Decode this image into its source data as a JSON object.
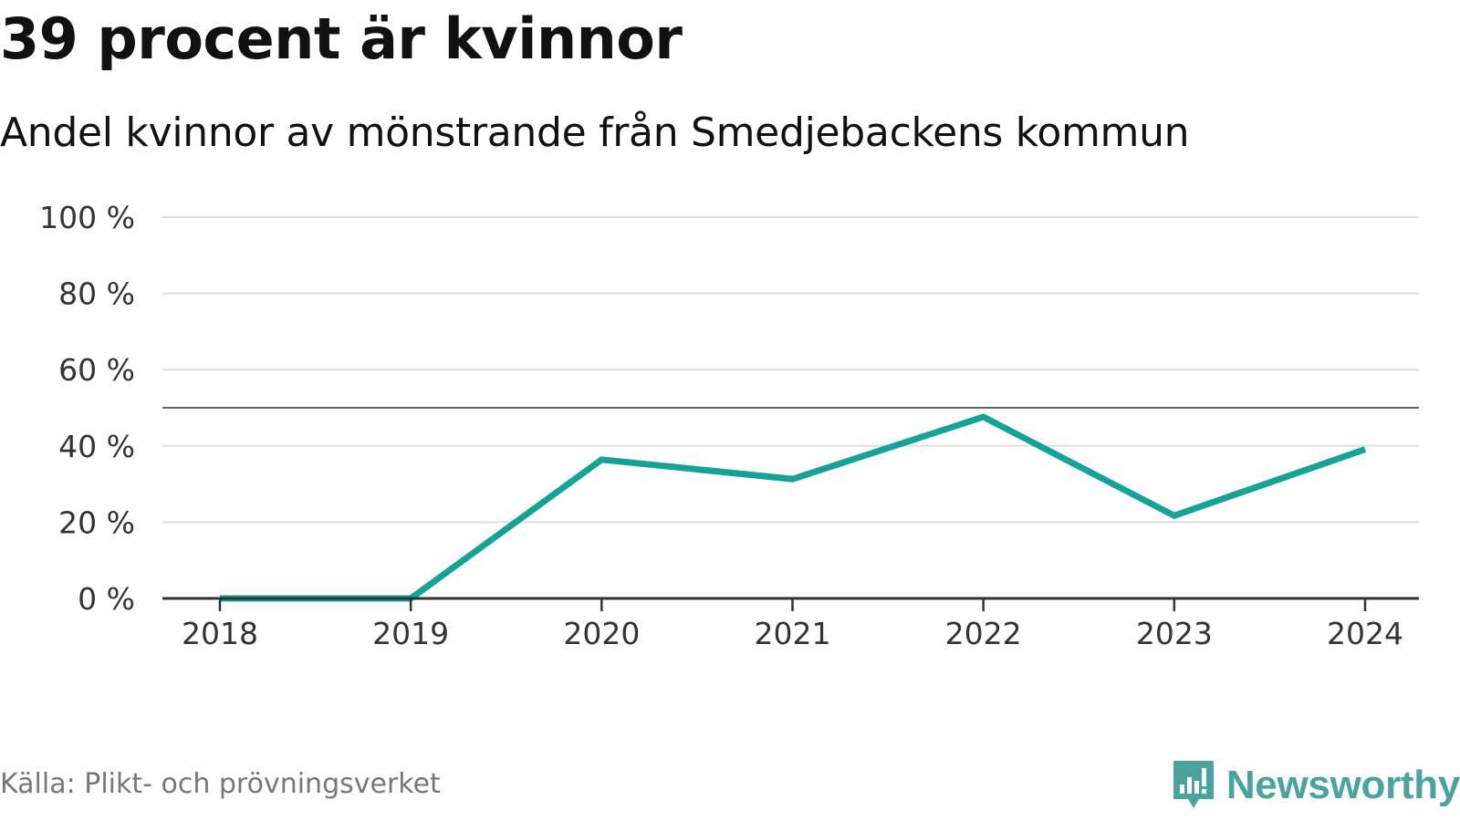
{
  "title": "39 procent är kvinnor",
  "subtitle": "Andel kvinnor av mönstrande från Smedjebackens kommun",
  "source": "Källa: Plikt- och prövningsverket",
  "brand": {
    "name": "Newsworthy",
    "icon": "newsworthy-logo-icon",
    "color": "#4aa39c"
  },
  "colors": {
    "line": "#14a396",
    "grid": "#dddddd",
    "reference": "#666666",
    "axis": "#333333"
  },
  "chart_data": {
    "type": "line",
    "categories": [
      "2018",
      "2019",
      "2020",
      "2021",
      "2022",
      "2023",
      "2024"
    ],
    "series": [
      {
        "name": "Andel kvinnor",
        "values": [
          0,
          0,
          36.4,
          31.3,
          47.6,
          21.7,
          39.1
        ]
      }
    ],
    "reference_line": 50,
    "ylim": [
      0,
      100
    ],
    "yticks": [
      0,
      20,
      40,
      60,
      80,
      100
    ],
    "ytick_labels": [
      "0 %",
      "20 %",
      "40 %",
      "60 %",
      "80 %",
      "100 %"
    ],
    "grid": true,
    "xlabel": "",
    "ylabel": ""
  }
}
